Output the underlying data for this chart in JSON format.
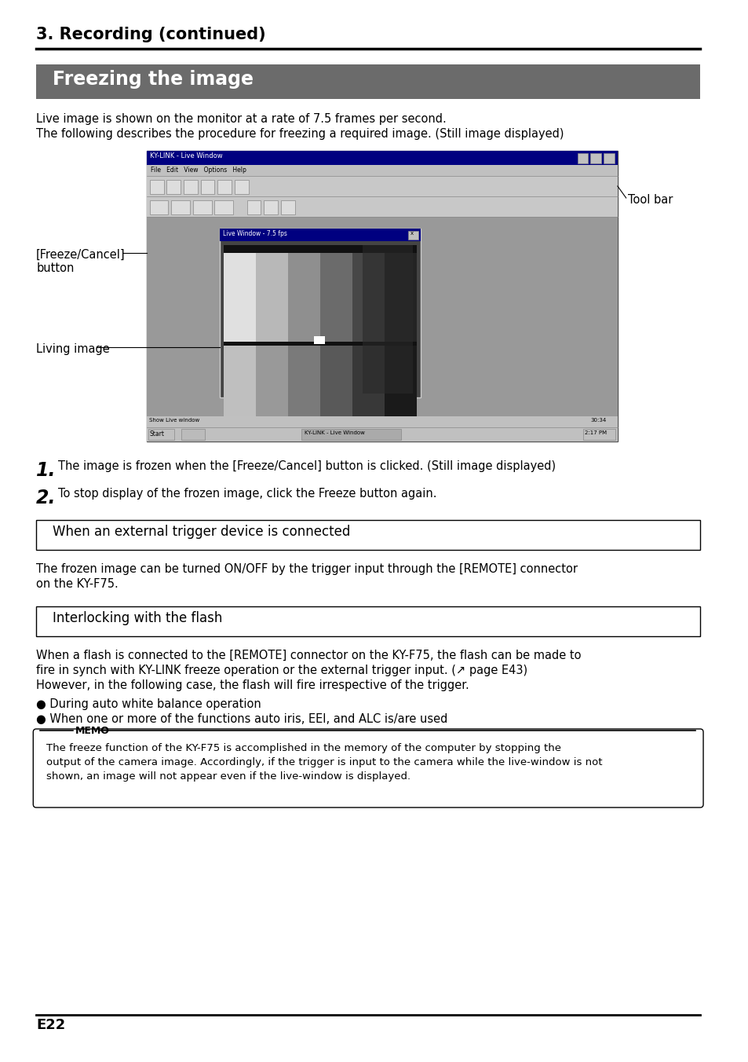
{
  "page_title": "3. Recording (continued)",
  "section_title": "Freezing the image",
  "section_title_bg": "#6b6b6b",
  "section_title_color": "#ffffff",
  "body_text_color": "#000000",
  "background_color": "#ffffff",
  "intro_lines": [
    "Live image is shown on the monitor at a rate of 7.5 frames per second.",
    "The following describes the procedure for freezing a required image. (Still image displayed)"
  ],
  "label_freeze_cancel": "[Freeze/Cancel]\nbutton",
  "label_living_image": "Living image",
  "label_tool_bar": "Tool bar",
  "step1_text": "The image is frozen when the [Freeze/Cancel] button is clicked. (Still image displayed)",
  "step2_text": "To stop display of the frozen image, click the Freeze button again.",
  "trigger_section_title": "When an external trigger device is connected",
  "trigger_text_line1": "The frozen image can be turned ON/OFF by the trigger input through the [REMOTE] connector",
  "trigger_text_line2": "on the KY-F75.",
  "flash_section_title": "Interlocking with the flash",
  "flash_text_line1": "When a flash is connected to the [REMOTE] connector on the KY-F75, the flash can be made to",
  "flash_text_line2": "fire in synch with KY-LINK freeze operation or the external trigger input. (↗ page E43)",
  "flash_text_line3": "However, in the following case, the flash will fire irrespective of the trigger.",
  "flash_bullets": [
    "● During auto white balance operation",
    "● When one or more of the functions auto iris, EEI, and ALC is/are used"
  ],
  "memo_title": "MEMO",
  "memo_text_line1": "The freeze function of the KY-F75 is accomplished in the memory of the computer by stopping the",
  "memo_text_line2": "output of the camera image. Accordingly, if the trigger is input to the camera while the live-window is not",
  "memo_text_line3": "shown, an image will not appear even if the live-window is displayed.",
  "page_number": "E22"
}
